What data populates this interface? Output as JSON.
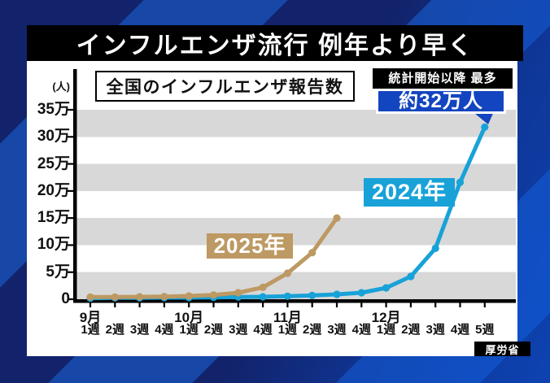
{
  "title": "インフルエンザ流行 例年より早く",
  "source": "厚労省",
  "colors": {
    "background_navy": "#12236b",
    "background_stripe": "#1748a8",
    "band_gray": "#d8d8d8",
    "callout_bg": "#1445c0",
    "line_2024": "#18a2d8",
    "line_2025": "#bd9963"
  },
  "chart_data": {
    "type": "line",
    "title": "全国のインフルエンザ報告数",
    "ylabel": "(人)",
    "unit": "万人",
    "ylim": [
      0,
      35
    ],
    "grid": "horizontal-gray-bands-every-5man",
    "legend_position": "inline-labels-on-plot",
    "y_ticks": [
      {
        "v": 0,
        "label": "0"
      },
      {
        "v": 5,
        "label": "5万"
      },
      {
        "v": 10,
        "label": "10万"
      },
      {
        "v": 15,
        "label": "15万"
      },
      {
        "v": 20,
        "label": "20万"
      },
      {
        "v": 25,
        "label": "25万"
      },
      {
        "v": 30,
        "label": "30万"
      },
      {
        "v": 35,
        "label": "35万"
      }
    ],
    "x_weeks": [
      "1週",
      "2週",
      "3週",
      "4週",
      "1週",
      "2週",
      "3週",
      "4週",
      "1週",
      "2週",
      "3週",
      "4週",
      "1週",
      "2週",
      "3週",
      "4週",
      "5週"
    ],
    "x_months": [
      {
        "label": "9月",
        "week_index": 0
      },
      {
        "label": "10月",
        "week_index": 4
      },
      {
        "label": "11月",
        "week_index": 8
      },
      {
        "label": "12月",
        "week_index": 12
      }
    ],
    "series": [
      {
        "name": "2024年",
        "color": "#18a2d8",
        "values": [
          0.2,
          0.25,
          0.25,
          0.3,
          0.3,
          0.35,
          0.4,
          0.45,
          0.55,
          0.7,
          0.9,
          1.2,
          2.1,
          4.2,
          9.4,
          21.6,
          31.8
        ]
      },
      {
        "name": "2025年",
        "color": "#bd9963",
        "values": [
          0.4,
          0.4,
          0.45,
          0.5,
          0.6,
          0.8,
          1.2,
          2.2,
          4.8,
          8.6,
          15.0
        ]
      }
    ],
    "annotations": [
      "統計開始以降 最多",
      "約32万人"
    ]
  }
}
